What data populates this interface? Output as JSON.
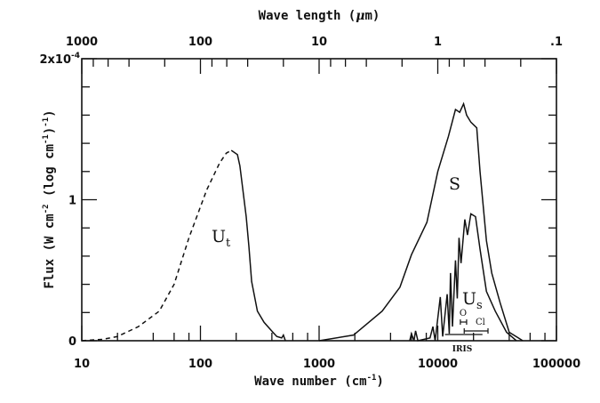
{
  "chart_data": {
    "type": "line",
    "xlabel": "Wave number (cm",
    "xlabel_sup": "-1",
    "xlabel_end": ")",
    "x_top_label": "Wave length (",
    "x_top_label_mu": "μ",
    "x_top_label_end": "m)",
    "ylabel": "Flux (W cm",
    "ylabel_sup1": "-2",
    "ylabel_mid": " (log cm",
    "ylabel_sup2": "-1",
    "ylabel_mid2": ")",
    "ylabel_sup3": "-1",
    "ylabel_end": ")",
    "x_scale": "log",
    "xlim": [
      10,
      100000
    ],
    "ylim": [
      0,
      2
    ],
    "y_unit_multiplier": "1e-4",
    "grid": false,
    "x_ticks": [
      {
        "value": 10,
        "label": "10"
      },
      {
        "value": 100,
        "label": "100"
      },
      {
        "value": 1000,
        "label": "1000"
      },
      {
        "value": 10000,
        "label": "10000"
      },
      {
        "value": 100000,
        "label": "100000"
      }
    ],
    "x_top_ticks": [
      {
        "value": 1000,
        "label": "1000"
      },
      {
        "value": 100,
        "label": "100"
      },
      {
        "value": 10,
        "label": "10"
      },
      {
        "value": 1,
        "label": "1"
      },
      {
        "value": 0.1,
        "label": ".1"
      }
    ],
    "y_ticks": [
      {
        "value": 0,
        "label": "0"
      },
      {
        "value": 1,
        "label": "1"
      },
      {
        "value": 2,
        "label": "2x10",
        "sup": "-4"
      }
    ],
    "series": [
      {
        "name": "U",
        "subscript": "t",
        "line_style": "dashed below peak, solid above",
        "dashed_x_max": 182,
        "x": [
          10,
          15,
          20,
          30,
          45,
          60,
          80,
          113,
          145,
          165,
          182,
          205,
          215,
          243,
          256,
          270,
          302,
          344,
          408,
          440,
          484,
          500,
          520
        ],
        "y": [
          0.0,
          0.01,
          0.03,
          0.1,
          0.21,
          0.4,
          0.73,
          1.07,
          1.26,
          1.33,
          1.35,
          1.32,
          1.24,
          0.88,
          0.67,
          0.42,
          0.21,
          0.13,
          0.06,
          0.03,
          0.02,
          0.04,
          0.0
        ]
      },
      {
        "name": "S",
        "x": [
          1000,
          1950,
          3400,
          4800,
          6000,
          8100,
          10000,
          12300,
          14100,
          15300,
          16500,
          17500,
          19000,
          21300,
          22700,
          25700,
          28500,
          33500,
          40000,
          47800,
          52000
        ],
        "y": [
          0.0,
          0.04,
          0.21,
          0.38,
          0.61,
          0.84,
          1.2,
          1.45,
          1.64,
          1.62,
          1.68,
          1.6,
          1.55,
          1.51,
          1.2,
          0.71,
          0.48,
          0.27,
          0.06,
          0.02,
          0.0
        ]
      },
      {
        "name": "U",
        "subscript": "s",
        "x": [
          5800,
          6000,
          6300,
          6500,
          6800,
          8600,
          9100,
          9500,
          10500,
          11000,
          12000,
          12500,
          12800,
          13300,
          14100,
          14600,
          15100,
          15700,
          16900,
          17800,
          19000,
          20800,
          22700,
          25700,
          30500,
          38000,
          46000
        ],
        "y": [
          0.0,
          0.05,
          0.0,
          0.07,
          0.0,
          0.02,
          0.1,
          0.0,
          0.31,
          0.03,
          0.33,
          0.05,
          0.48,
          0.1,
          0.57,
          0.3,
          0.73,
          0.55,
          0.86,
          0.75,
          0.9,
          0.88,
          0.65,
          0.35,
          0.21,
          0.06,
          0.0
        ]
      }
    ],
    "annotations": [
      {
        "label": "O",
        "x_range": [
          15500,
          17500
        ]
      },
      {
        "label": "Cl",
        "x_range": [
          16700,
          26500
        ]
      },
      {
        "label": "IRIS",
        "x_range": [
          11500,
          23800
        ]
      }
    ]
  }
}
